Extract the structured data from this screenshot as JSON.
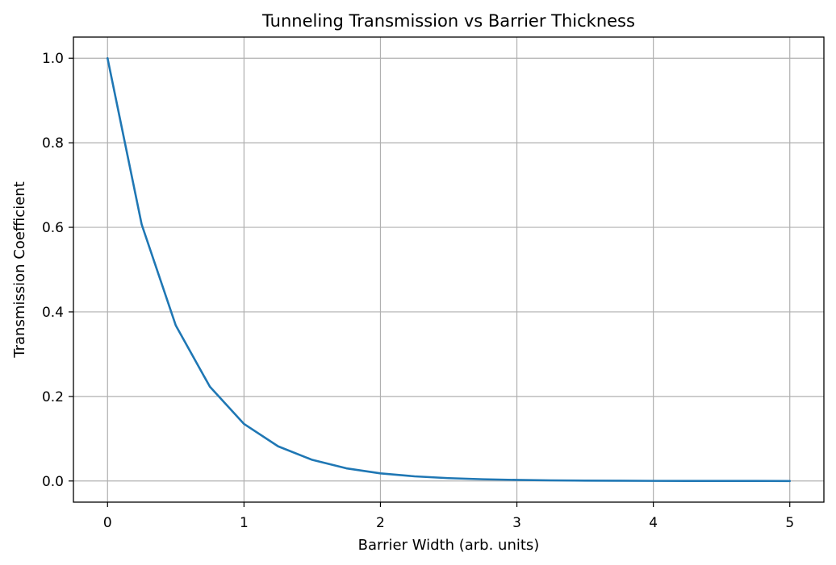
{
  "chart_data": {
    "type": "line",
    "title": "Tunneling Transmission vs Barrier Thickness",
    "xlabel": "Barrier Width (arb. units)",
    "ylabel": "Transmission Coefficient",
    "xlim": [
      -0.25,
      5.25
    ],
    "ylim": [
      -0.05,
      1.05
    ],
    "xticks": [
      0,
      1,
      2,
      3,
      4,
      5
    ],
    "xtick_labels": [
      "0",
      "1",
      "2",
      "3",
      "4",
      "5"
    ],
    "yticks": [
      0.0,
      0.2,
      0.4,
      0.6,
      0.8,
      1.0
    ],
    "ytick_labels": [
      "0.0",
      "0.2",
      "0.4",
      "0.6",
      "0.8",
      "1.0"
    ],
    "grid": true,
    "legend": "none",
    "colors": {
      "line": "#1f77b4",
      "grid": "#b0b0b0",
      "axes": "#000000"
    },
    "series": [
      {
        "x": [
          0,
          0.25,
          0.5,
          0.75,
          1.0,
          1.25,
          1.5,
          1.75,
          2.0,
          2.25,
          2.5,
          2.75,
          3.0,
          3.25,
          3.5,
          3.75,
          4.0,
          4.25,
          4.5,
          4.75,
          5.0
        ],
        "values": [
          1.0,
          0.607,
          0.368,
          0.223,
          0.135,
          0.082,
          0.05,
          0.03,
          0.018,
          0.011,
          0.0067,
          0.0041,
          0.0025,
          0.0015,
          0.0009,
          0.0006,
          0.0003,
          0.0002,
          0.0001,
          0.0001,
          0.0
        ]
      }
    ]
  }
}
